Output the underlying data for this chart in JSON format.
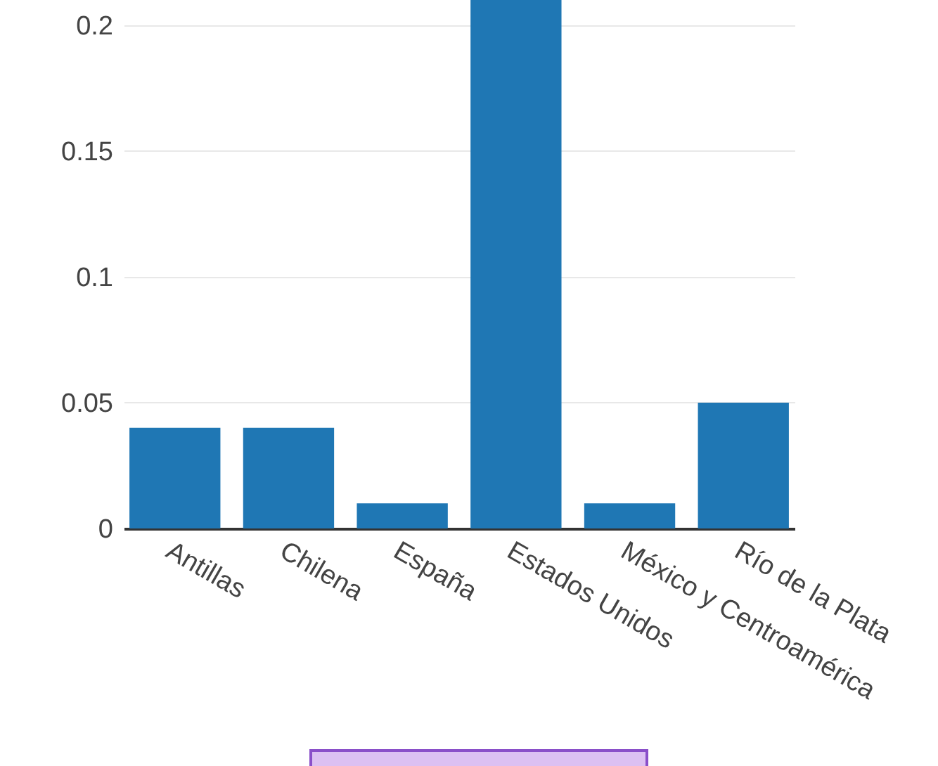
{
  "chart_data": {
    "type": "bar",
    "categories": [
      "Antillas",
      "Chilena",
      "España",
      "Estados Unidos",
      "México y Centroamérica",
      "Río de la Plata"
    ],
    "values": [
      0.04,
      0.04,
      0.01,
      0.21,
      0.01,
      0.05
    ],
    "color": "#1f77b4",
    "ylim": [
      0,
      0.21
    ],
    "yticks": [
      0,
      0.05,
      0.1,
      0.15,
      0.2
    ],
    "grid": "y"
  }
}
